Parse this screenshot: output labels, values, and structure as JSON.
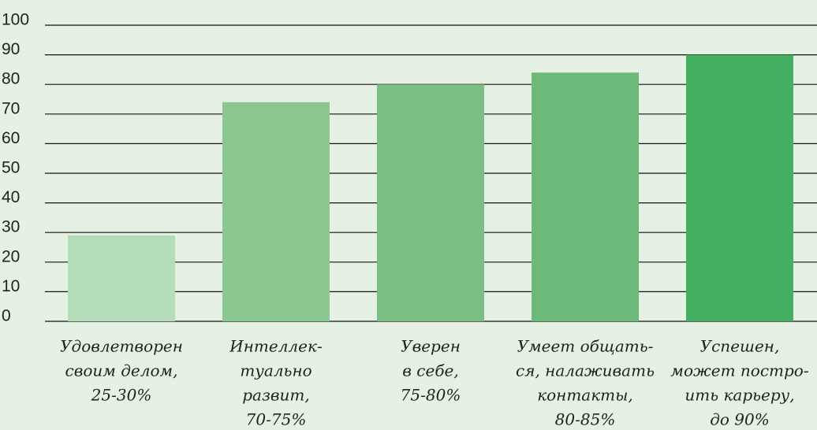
{
  "chart_data": {
    "type": "bar",
    "categories": [
      [
        "Удовлетворен",
        "своим делом,",
        "25-30%"
      ],
      [
        "Интеллек-",
        "туально",
        "развит,",
        "70-75%"
      ],
      [
        "Уверен",
        "в себе,",
        "75-80%"
      ],
      [
        "Умеет общать-",
        "ся, налаживать",
        "контакты,",
        "80-85%"
      ],
      [
        "Успешен,",
        "может постро-",
        "ить карьеру,",
        "до 90%"
      ]
    ],
    "values": [
      29,
      74,
      80,
      84,
      90
    ],
    "colors": [
      "#b5dcb9",
      "#8cc792",
      "#7bbf85",
      "#6cb97a",
      "#45b062"
    ],
    "ylim": [
      0,
      100
    ],
    "yticks": [
      0,
      10,
      20,
      30,
      40,
      50,
      60,
      70,
      80,
      90,
      100
    ],
    "grid": true
  }
}
